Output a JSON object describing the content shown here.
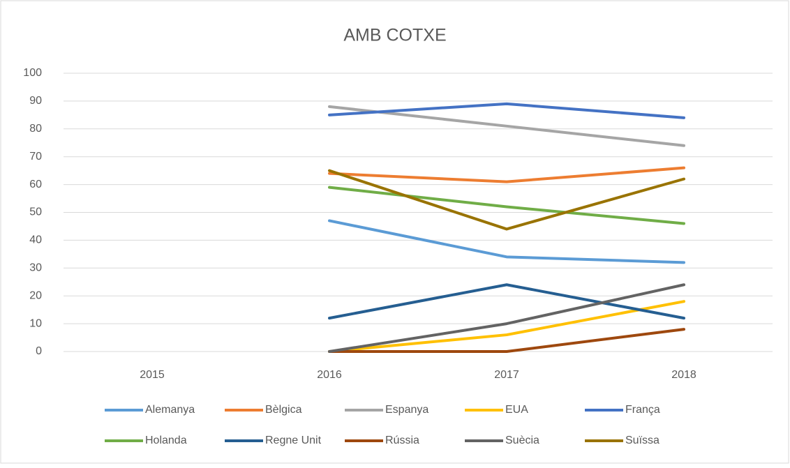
{
  "chart_data": {
    "type": "line",
    "title": "AMB COTXE",
    "categories": [
      "2015",
      "2016",
      "2017",
      "2018"
    ],
    "series": [
      {
        "name": "Alemanya",
        "color": "#5b9bd5",
        "values": [
          null,
          47,
          34,
          32
        ]
      },
      {
        "name": "Bèlgica",
        "color": "#ed7d31",
        "values": [
          null,
          64,
          61,
          66
        ]
      },
      {
        "name": "Espanya",
        "color": "#a5a5a5",
        "values": [
          null,
          88,
          81,
          74
        ]
      },
      {
        "name": "EUA",
        "color": "#ffc000",
        "values": [
          null,
          0,
          6,
          18
        ]
      },
      {
        "name": "França",
        "color": "#4472c4",
        "values": [
          null,
          85,
          89,
          84
        ]
      },
      {
        "name": "Holanda",
        "color": "#70ad47",
        "values": [
          null,
          59,
          52,
          46
        ]
      },
      {
        "name": "Regne Unit",
        "color": "#255e91",
        "values": [
          null,
          12,
          24,
          12
        ]
      },
      {
        "name": "Rússia",
        "color": "#9e480e",
        "values": [
          null,
          0,
          0,
          8
        ]
      },
      {
        "name": "Suècia",
        "color": "#636363",
        "values": [
          null,
          0,
          10,
          24
        ]
      },
      {
        "name": "Suïssa",
        "color": "#997300",
        "values": [
          null,
          65,
          44,
          62
        ]
      }
    ],
    "ylim": [
      0,
      100
    ],
    "yticks": [
      0,
      10,
      20,
      30,
      40,
      50,
      60,
      70,
      80,
      90,
      100
    ],
    "grid": true,
    "legend": "bottom"
  }
}
